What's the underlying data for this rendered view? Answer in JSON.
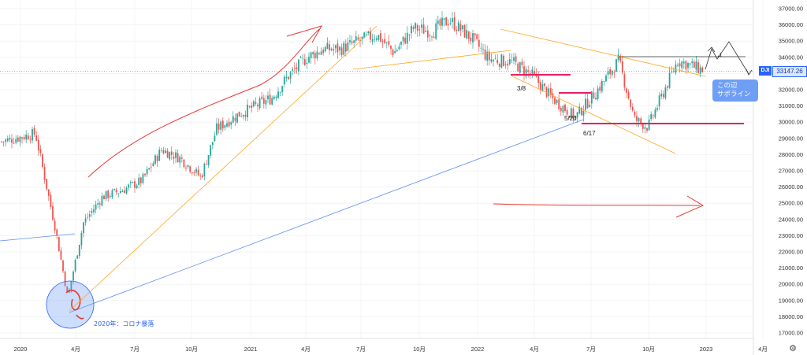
{
  "chart_data": {
    "type": "candlestick",
    "symbol": "DJI",
    "last_price": "33147.26",
    "y_ticks": [
      "37000.00",
      "36000.00",
      "35000.00",
      "34000.00",
      "33000.00",
      "32000.00",
      "31000.00",
      "30000.00",
      "29000.00",
      "28000.00",
      "27000.00",
      "26000.00",
      "25000.00",
      "24000.00",
      "23000.00",
      "22000.00",
      "21000.00",
      "20000.00",
      "19000.00",
      "18000.00",
      "17000.00"
    ],
    "x_ticks": [
      "2020",
      "4月",
      "7月",
      "10月",
      "2021",
      "4月",
      "7月",
      "10月",
      "2022",
      "4月",
      "7月",
      "10月",
      "2023",
      "4月"
    ],
    "ylim": [
      16600,
      37400
    ],
    "annotations": {
      "covid": "2020年：コロナ暴落",
      "d1": "3/8",
      "d2": "5/20",
      "d3": "6/17",
      "support": [
        "この辺",
        "サポライン"
      ]
    },
    "series": [
      {
        "x": [
          "2020-01",
          "2020-02",
          "2020-03a",
          "2020-03b",
          "2020-04",
          "2020-05",
          "2020-06",
          "2020-07",
          "2020-08",
          "2020-09",
          "2020-10",
          "2020-11",
          "2020-12",
          "2021-01",
          "2021-02",
          "2021-03",
          "2021-04",
          "2021-05",
          "2021-06",
          "2021-07",
          "2021-08",
          "2021-09",
          "2021-10",
          "2021-11",
          "2021-12",
          "2022-01",
          "2022-02",
          "2022-03",
          "2022-04",
          "2022-05",
          "2022-06",
          "2022-07",
          "2022-08",
          "2022-09",
          "2022-10",
          "2022-11",
          "2022-12"
        ],
        "values": [
          28800,
          29300,
          23500,
          19200,
          23800,
          25400,
          25800,
          26400,
          28300,
          27800,
          26600,
          29600,
          30400,
          30900,
          31500,
          32800,
          34000,
          34500,
          34500,
          35000,
          35400,
          34300,
          35800,
          35600,
          36300,
          35100,
          33900,
          33700,
          32900,
          31500,
          30300,
          32100,
          33800,
          30200,
          29700,
          33800,
          33150
        ]
      }
    ],
    "colors": {
      "up": "#26a69a",
      "down": "#ef5350",
      "fib": "#ffa726",
      "trend_blue": "#5b8def",
      "drawing_red": "#e53935",
      "level_pink": "#e91e63"
    }
  }
}
